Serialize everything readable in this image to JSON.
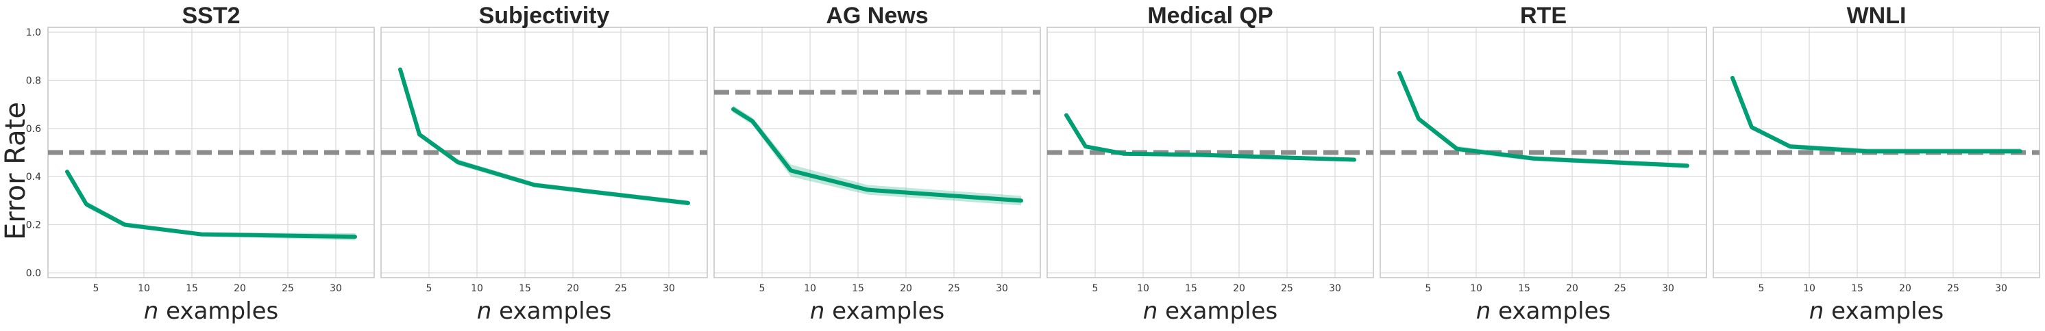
{
  "figure": {
    "ylabel": "Error Rate"
  },
  "colors": {
    "series": "#009e73",
    "band": "#009e73",
    "baseline": "#8c8c8c",
    "grid": "#d9d9d9",
    "frame": "#c8c8c8",
    "text": "#262626"
  },
  "chart_data": [
    {
      "type": "line",
      "title": "SST2",
      "xlabel_var": "n",
      "xlabel_rest": " examples",
      "ylabel": "Error Rate",
      "x": [
        2,
        4,
        8,
        16,
        32
      ],
      "xlim": [
        0,
        34
      ],
      "ylim": [
        -0.02,
        1.02
      ],
      "xticks": [
        5,
        10,
        15,
        20,
        25,
        30
      ],
      "yticks": [
        0.0,
        0.2,
        0.4,
        0.6,
        0.8,
        1.0
      ],
      "grid": true,
      "series": [
        {
          "values": [
            0.42,
            0.285,
            0.2,
            0.16,
            0.15
          ],
          "band": [
            0.01,
            0.012,
            0.01,
            0.008,
            0.015
          ]
        }
      ],
      "baseline": 0.5
    },
    {
      "type": "line",
      "title": "Subjectivity",
      "xlabel_var": "n",
      "xlabel_rest": " examples",
      "x": [
        2,
        4,
        8,
        16,
        32
      ],
      "xlim": [
        0,
        34
      ],
      "ylim": [
        -0.02,
        1.02
      ],
      "xticks": [
        5,
        10,
        15,
        20,
        25,
        30
      ],
      "yticks": [
        0.0,
        0.2,
        0.4,
        0.6,
        0.8,
        1.0
      ],
      "grid": true,
      "series": [
        {
          "values": [
            0.845,
            0.575,
            0.46,
            0.365,
            0.29
          ],
          "band": [
            0.01,
            0.01,
            0.012,
            0.01,
            0.01
          ]
        }
      ],
      "baseline": 0.5
    },
    {
      "type": "line",
      "title": "AG News",
      "xlabel_var": "n",
      "xlabel_rest": " examples",
      "x": [
        2,
        4,
        8,
        16,
        32
      ],
      "xlim": [
        0,
        34
      ],
      "ylim": [
        -0.02,
        1.02
      ],
      "xticks": [
        5,
        10,
        15,
        20,
        25,
        30
      ],
      "yticks": [
        0.0,
        0.2,
        0.4,
        0.6,
        0.8,
        1.0
      ],
      "grid": true,
      "series": [
        {
          "values": [
            0.68,
            0.63,
            0.425,
            0.345,
            0.3
          ],
          "band": [
            0.015,
            0.015,
            0.025,
            0.02,
            0.02
          ]
        }
      ],
      "baseline": 0.75
    },
    {
      "type": "line",
      "title": "Medical QP",
      "xlabel_var": "n",
      "xlabel_rest": " examples",
      "x": [
        2,
        4,
        8,
        16,
        32
      ],
      "xlim": [
        0,
        34
      ],
      "ylim": [
        -0.02,
        1.02
      ],
      "xticks": [
        5,
        10,
        15,
        20,
        25,
        30
      ],
      "yticks": [
        0.0,
        0.2,
        0.4,
        0.6,
        0.8,
        1.0
      ],
      "grid": true,
      "series": [
        {
          "values": [
            0.655,
            0.525,
            0.495,
            0.49,
            0.47
          ],
          "band": [
            0.008,
            0.008,
            0.008,
            0.008,
            0.008
          ]
        }
      ],
      "baseline": 0.5
    },
    {
      "type": "line",
      "title": "RTE",
      "xlabel_var": "n",
      "xlabel_rest": " examples",
      "x": [
        2,
        4,
        8,
        16,
        32
      ],
      "xlim": [
        0,
        34
      ],
      "ylim": [
        -0.02,
        1.02
      ],
      "xticks": [
        5,
        10,
        15,
        20,
        25,
        30
      ],
      "yticks": [
        0.0,
        0.2,
        0.4,
        0.6,
        0.8,
        1.0
      ],
      "grid": true,
      "series": [
        {
          "values": [
            0.83,
            0.64,
            0.515,
            0.475,
            0.445
          ],
          "band": [
            0.008,
            0.01,
            0.012,
            0.01,
            0.01
          ]
        }
      ],
      "baseline": 0.5
    },
    {
      "type": "line",
      "title": "WNLI",
      "xlabel_var": "n",
      "xlabel_rest": " examples",
      "x": [
        2,
        4,
        8,
        16,
        32
      ],
      "xlim": [
        0,
        34
      ],
      "ylim": [
        -0.02,
        1.02
      ],
      "xticks": [
        5,
        10,
        15,
        20,
        25,
        30
      ],
      "yticks": [
        0.0,
        0.2,
        0.4,
        0.6,
        0.8,
        1.0
      ],
      "grid": true,
      "series": [
        {
          "values": [
            0.81,
            0.605,
            0.525,
            0.505,
            0.505
          ],
          "band": [
            0.008,
            0.01,
            0.01,
            0.012,
            0.012
          ]
        }
      ],
      "baseline": 0.5
    }
  ]
}
